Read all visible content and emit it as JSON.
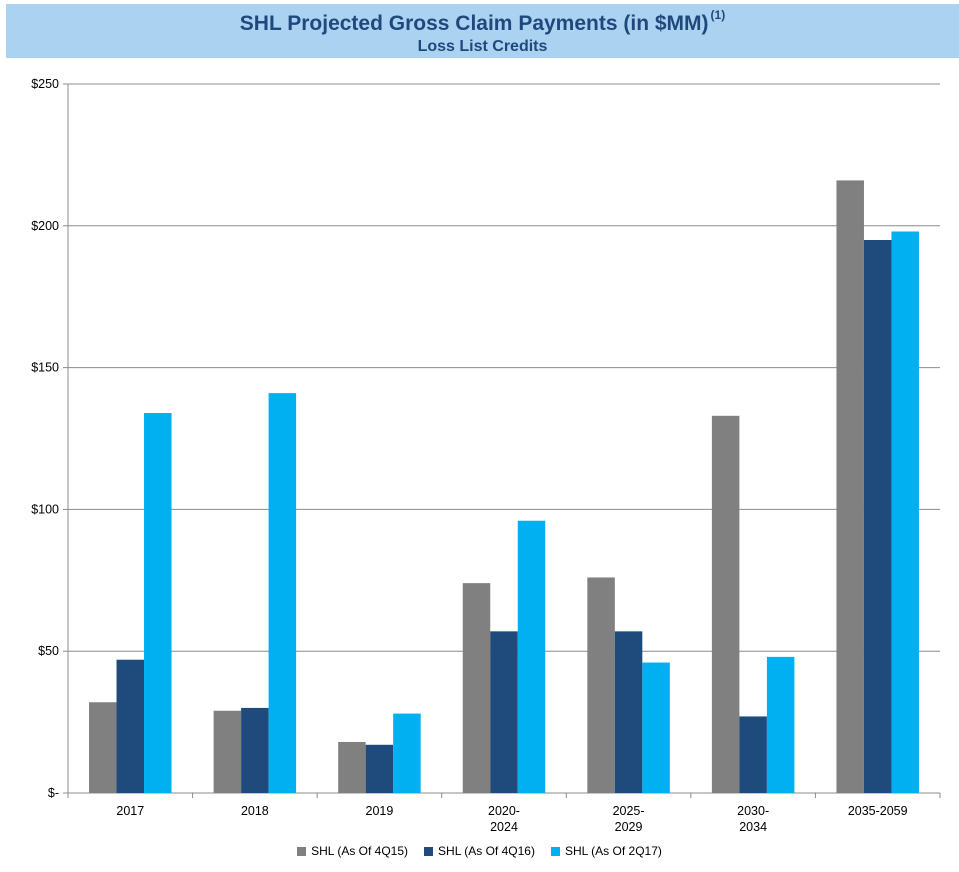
{
  "title": {
    "main": "SHL Projected Gross Claim Payments (in $MM)",
    "footnote": "(1)",
    "subtitle": "Loss List Credits"
  },
  "colors": {
    "title_band": "#acd2f2",
    "title_text": "#1f497d",
    "series_4q15": "#808080",
    "series_4q16": "#1f4a7c",
    "series_2q17": "#00b0f0",
    "gridline": "#8c8c8c"
  },
  "chart_data": {
    "type": "bar",
    "title": "SHL Projected Gross Claim Payments (in $MM)",
    "subtitle": "Loss List Credits",
    "categories": [
      [
        "2017"
      ],
      [
        "2018"
      ],
      [
        "2019"
      ],
      [
        "2020-",
        "2024"
      ],
      [
        "2025-",
        "2029"
      ],
      [
        "2030-",
        "2034"
      ],
      [
        "2035-2059"
      ]
    ],
    "series": [
      {
        "name": "SHL (As Of 4Q15)",
        "color": "#808080",
        "values": [
          32,
          29,
          18,
          74,
          76,
          133,
          216
        ]
      },
      {
        "name": "SHL (As Of 4Q16)",
        "color": "#1f4a7c",
        "values": [
          47,
          30,
          17,
          57,
          57,
          27,
          195
        ]
      },
      {
        "name": "SHL (As Of 2Q17)",
        "color": "#00b0f0",
        "values": [
          134,
          141,
          28,
          96,
          46,
          48,
          198
        ]
      }
    ],
    "yticks": [
      0,
      50,
      100,
      150,
      200,
      250
    ],
    "ytick_labels": [
      "$-",
      "$50",
      "$100",
      "$150",
      "$200",
      "$250"
    ],
    "ylim": [
      0,
      250
    ],
    "xlabel": "",
    "ylabel": "",
    "grid": true,
    "legend": "bottom"
  }
}
